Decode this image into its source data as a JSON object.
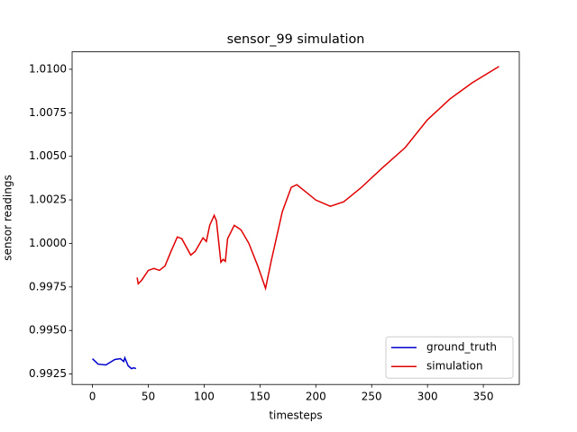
{
  "chart_data": {
    "type": "line",
    "title": "sensor_99 simulation",
    "x_label": "timesteps",
    "y_label": "sensor readings",
    "xlim": [
      -18.2,
      382.2
    ],
    "xticks": [
      0,
      50,
      100,
      150,
      200,
      250,
      300,
      350
    ],
    "ylim": [
      0.9919,
      1.011
    ],
    "yticks": [
      {
        "value": 0.9925,
        "label": "0.9925"
      },
      {
        "value": 0.995,
        "label": "0.9950"
      },
      {
        "value": 0.9975,
        "label": "0.9975"
      },
      {
        "value": 1.0,
        "label": "1.0000"
      },
      {
        "value": 1.0025,
        "label": "1.0025"
      },
      {
        "value": 1.005,
        "label": "1.0050"
      },
      {
        "value": 1.0075,
        "label": "1.0075"
      },
      {
        "value": 1.01,
        "label": "1.0100"
      }
    ],
    "grid": false,
    "legend": "lower right",
    "series": [
      {
        "name": "ground_truth",
        "color": "#0000cd",
        "x": [
          0,
          5,
          12,
          20,
          25,
          28,
          29,
          32,
          35,
          37,
          39
        ],
        "values": [
          0.99338,
          0.99307,
          0.99302,
          0.99333,
          0.99338,
          0.99322,
          0.99343,
          0.99297,
          0.99281,
          0.99286,
          0.99281
        ]
      },
      {
        "name": "simulation",
        "color": "#e00000",
        "x": [
          40,
          41,
          44,
          50,
          55,
          60,
          65,
          70,
          76,
          80,
          88,
          92,
          99,
          102,
          105,
          109,
          111,
          115,
          117,
          119,
          121,
          127,
          133,
          140,
          148,
          155,
          160,
          170,
          178,
          183,
          190,
          200,
          213,
          225,
          240,
          260,
          280,
          300,
          320,
          340,
          364
        ],
        "values": [
          0.99804,
          0.99768,
          0.99788,
          0.99845,
          0.99856,
          0.99845,
          0.99871,
          0.99949,
          1.00037,
          1.00027,
          0.99933,
          0.99954,
          1.00032,
          1.00011,
          1.00104,
          1.00161,
          1.0013,
          0.99892,
          0.99908,
          0.99897,
          1.00027,
          1.00104,
          1.00078,
          1.00001,
          0.99871,
          0.99742,
          0.99897,
          1.00182,
          1.00322,
          1.00337,
          1.00301,
          1.00249,
          1.00213,
          1.00239,
          1.00317,
          1.00436,
          1.0055,
          1.0071,
          1.00829,
          1.00922,
          1.01016
        ]
      }
    ]
  }
}
